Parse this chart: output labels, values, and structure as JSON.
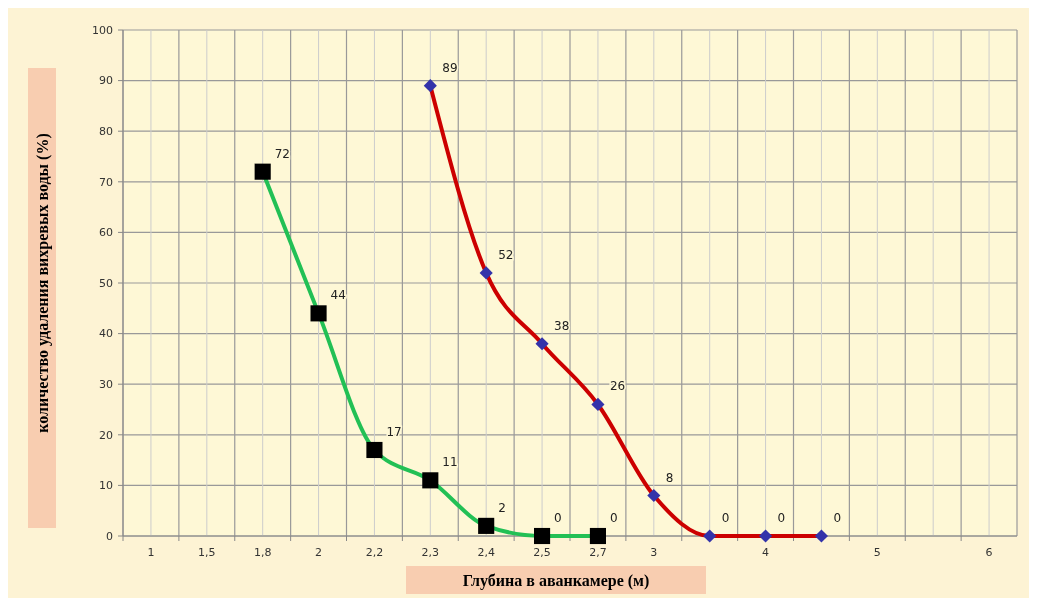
{
  "chart_data": {
    "type": "line",
    "xlabel": "Глубина   в аванкамере (м)",
    "ylabel": "количество  удаления  вихревых  воды (%)",
    "categories": [
      "1",
      "1,5",
      "1,8",
      "2",
      "2,2",
      "2,3",
      "2,4",
      "2,5",
      "2,7",
      "3",
      null,
      "4",
      null,
      "5",
      null,
      "6"
    ],
    "series": [
      {
        "color": "#22c055",
        "marker": "square",
        "colors": [
          null,
          null,
          "#000000",
          "#000000",
          "#000000",
          "#000000",
          "#000000",
          "#000000",
          "#000000",
          null,
          null,
          null,
          null,
          null,
          null,
          null
        ],
        "values": [
          null,
          null,
          72,
          44,
          17,
          11,
          2,
          0,
          0,
          null,
          null,
          null,
          null,
          null,
          null,
          null
        ]
      },
      {
        "color": "#cc0000",
        "marker": "diamond",
        "colors": [
          null,
          null,
          null,
          null,
          null,
          "#3333aa",
          "#3333aa",
          "#3333aa",
          "#3333aa",
          "#3333aa",
          "#3333aa",
          "#3333aa",
          "#3333aa",
          null,
          null,
          null
        ],
        "values": [
          null,
          null,
          null,
          null,
          null,
          89,
          52,
          38,
          26,
          8,
          0,
          0,
          0,
          null,
          null,
          null
        ]
      }
    ],
    "ylim": [
      0,
      100
    ],
    "yticks": [
      0,
      10,
      20,
      30,
      40,
      50,
      60,
      70,
      80,
      90,
      100
    ],
    "grid": true,
    "data_labels": true
  }
}
